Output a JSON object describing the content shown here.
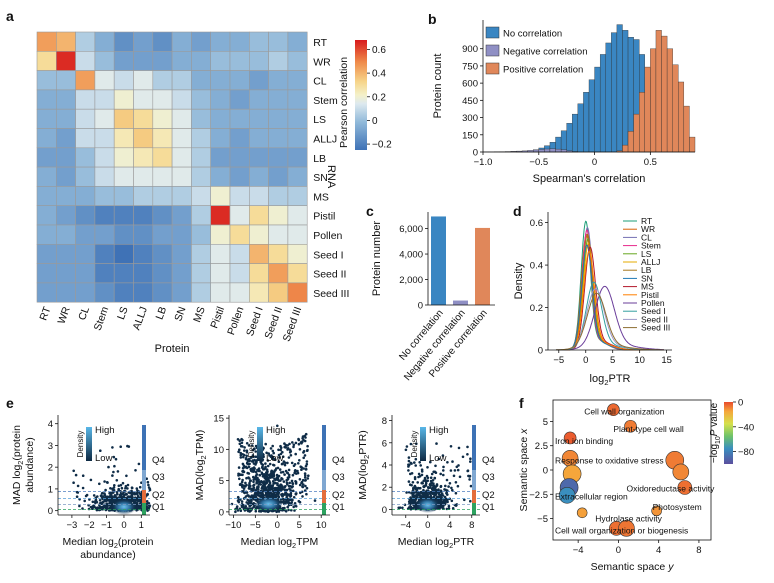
{
  "panel_letters": {
    "a": "a",
    "b": "b",
    "c": "c",
    "d": "d",
    "e": "e",
    "f": "f"
  },
  "colors": {
    "no_corr": "#3a86c2",
    "neg_corr": "#8f8fc4",
    "pos_corr": "#e0875a",
    "heat_low": "#3f72b6",
    "heat_mid": "#f4f1c9",
    "heat_high": "#d7191c"
  },
  "panel_a": {
    "chart_data": {
      "type": "heatmap",
      "rows": [
        "RT",
        "WR",
        "CL",
        "Stem",
        "LS",
        "ALLJ",
        "LB",
        "SN",
        "MS",
        "Pistil",
        "Pollen",
        "Seed I",
        "Seed II",
        "Seed III"
      ],
      "cols": [
        "RT",
        "WR",
        "CL",
        "Stem",
        "LS",
        "ALLJ",
        "LB",
        "SN",
        "MS",
        "Pistil",
        "Pollen",
        "Seed I",
        "Seed II",
        "Seed III"
      ],
      "values": [
        [
          0.45,
          0.4,
          0.05,
          -0.05,
          -0.15,
          -0.1,
          -0.15,
          -0.05,
          -0.1,
          -0.05,
          -0.05,
          0.0,
          0.0,
          -0.05
        ],
        [
          0.3,
          0.65,
          0.1,
          0.0,
          -0.1,
          -0.1,
          -0.1,
          -0.05,
          -0.05,
          0.0,
          0.0,
          0.0,
          0.05,
          0.0
        ],
        [
          0.0,
          0.0,
          0.45,
          0.15,
          0.1,
          0.15,
          0.05,
          0.05,
          -0.05,
          -0.05,
          -0.05,
          -0.1,
          -0.05,
          -0.05
        ],
        [
          -0.05,
          -0.05,
          0.1,
          0.1,
          0.2,
          0.15,
          0.15,
          0.1,
          0.0,
          -0.05,
          -0.1,
          -0.05,
          -0.05,
          -0.05
        ],
        [
          -0.05,
          -0.05,
          0.1,
          0.15,
          0.35,
          0.3,
          0.2,
          0.15,
          0.0,
          -0.05,
          -0.05,
          -0.05,
          -0.05,
          -0.05
        ],
        [
          -0.05,
          -0.1,
          0.1,
          0.1,
          0.25,
          0.35,
          0.25,
          0.15,
          0.05,
          -0.05,
          -0.1,
          -0.05,
          -0.05,
          -0.05
        ],
        [
          -0.1,
          -0.1,
          0.0,
          0.1,
          0.2,
          0.25,
          0.3,
          0.15,
          0.05,
          -0.1,
          -0.1,
          -0.1,
          -0.1,
          -0.1
        ],
        [
          -0.05,
          -0.1,
          0.0,
          0.1,
          0.15,
          0.15,
          0.15,
          0.15,
          0.05,
          -0.05,
          -0.1,
          -0.05,
          -0.1,
          -0.05
        ],
        [
          -0.05,
          -0.05,
          -0.05,
          0.0,
          0.0,
          0.05,
          0.05,
          0.05,
          0.1,
          0.2,
          0.1,
          0.1,
          0.05,
          0.05
        ],
        [
          -0.05,
          -0.1,
          -0.15,
          -0.2,
          -0.2,
          -0.2,
          -0.15,
          -0.1,
          0.05,
          0.65,
          0.15,
          0.3,
          0.2,
          0.15
        ],
        [
          -0.05,
          -0.05,
          -0.1,
          -0.1,
          -0.15,
          -0.15,
          -0.1,
          -0.1,
          0.0,
          0.2,
          0.3,
          0.2,
          0.15,
          0.15
        ],
        [
          -0.1,
          -0.1,
          -0.1,
          -0.2,
          -0.25,
          -0.2,
          -0.15,
          -0.1,
          0.05,
          0.15,
          0.1,
          0.4,
          0.3,
          0.2
        ],
        [
          -0.1,
          -0.1,
          -0.1,
          -0.2,
          -0.2,
          -0.2,
          -0.15,
          -0.1,
          0.05,
          0.15,
          0.1,
          0.3,
          0.45,
          0.3
        ],
        [
          -0.1,
          -0.1,
          -0.1,
          -0.15,
          -0.2,
          -0.2,
          -0.15,
          -0.1,
          0.05,
          0.15,
          0.15,
          0.25,
          0.35,
          0.5
        ]
      ],
      "xlabel": "Protein",
      "ylabel": "RNA",
      "colorbar": {
        "label": "Pearson correlation",
        "range": [
          -0.25,
          0.68
        ],
        "ticks": [
          0.6,
          0.4,
          0.2,
          0,
          -0.2
        ],
        "tick_labels": [
          "0.6",
          "0.4",
          "0.2",
          "0",
          "−0.2"
        ]
      }
    }
  },
  "panel_b": {
    "chart_data": {
      "type": "bar",
      "title": "",
      "xlabel": "Spearman's correlation",
      "ylabel": "Protein count",
      "xlim": [
        -1.0,
        0.9
      ],
      "ylim": [
        0,
        1150
      ],
      "xticks": [
        -1.0,
        -0.5,
        0,
        0.5
      ],
      "xtick_labels": [
        "−1.0",
        "−0.5",
        "0",
        "0.5"
      ],
      "yticks": [
        0,
        150,
        300,
        450,
        600,
        750,
        900
      ],
      "ytick_labels": [
        "0",
        "150",
        "300",
        "450",
        "600",
        "750",
        "900"
      ],
      "bin_width": 0.05,
      "series": [
        {
          "name": "No correlation",
          "color": "#3a86c2",
          "bin_start": -0.7,
          "values": [
            2,
            5,
            10,
            20,
            35,
            55,
            85,
            130,
            185,
            250,
            330,
            420,
            520,
            630,
            740,
            850,
            950,
            1040,
            1110,
            1060,
            1000,
            980,
            850,
            650
          ]
        },
        {
          "name": "Negative correlation",
          "color": "#8f8fc4",
          "bin_start": -1.0,
          "values": [
            1,
            1,
            2,
            3,
            4,
            6,
            8,
            10,
            14,
            18,
            22,
            26,
            28,
            25,
            20,
            10,
            4
          ]
        },
        {
          "name": "Positive correlation",
          "color": "#e0875a",
          "bin_start": 0.2,
          "values": [
            10,
            60,
            180,
            330,
            520,
            740,
            900,
            1060,
            1010,
            900,
            760,
            610,
            400,
            130
          ]
        }
      ],
      "legend": "top-left"
    }
  },
  "panel_c": {
    "chart_data": {
      "type": "bar",
      "categories": [
        "No correlation",
        "Negative correlation",
        "Positive correlation"
      ],
      "values": [
        6950,
        350,
        6050
      ],
      "colors": [
        "#3a86c2",
        "#8f8fc4",
        "#e0875a"
      ],
      "ylabel": "Protein number",
      "ylim": [
        0,
        7300
      ],
      "yticks": [
        0,
        2000,
        4000,
        6000
      ],
      "ytick_labels": [
        "0",
        "2,000",
        "4,000",
        "6,000"
      ]
    }
  },
  "panel_d": {
    "chart_data": {
      "type": "line",
      "xlabel_main": "log",
      "xlabel_sub": "2",
      "xlabel_tail": "PTR",
      "ylabel": "Density",
      "xlim": [
        -7,
        16
      ],
      "ylim": [
        0,
        0.65
      ],
      "xticks": [
        -5,
        0,
        5,
        10,
        15
      ],
      "xtick_labels": [
        "−5",
        "0",
        "5",
        "10",
        "15"
      ],
      "yticks": [
        0,
        0.2,
        0.4,
        0.6
      ],
      "ytick_labels": [
        "0",
        "0.2",
        "0.4",
        "0.6"
      ],
      "series": [
        {
          "name": "RT",
          "color": "#1b9e77",
          "mu": 0.0,
          "sd": 0.85,
          "peak": 0.58
        },
        {
          "name": "WR",
          "color": "#d95f02",
          "mu": 0.1,
          "sd": 0.9,
          "peak": 0.52
        },
        {
          "name": "CL",
          "color": "#7570b3",
          "mu": 0.3,
          "sd": 0.9,
          "peak": 0.55
        },
        {
          "name": "Stem",
          "color": "#e7298a",
          "mu": 0.2,
          "sd": 0.85,
          "peak": 0.54
        },
        {
          "name": "LS",
          "color": "#66a61e",
          "mu": 0.4,
          "sd": 0.9,
          "peak": 0.5
        },
        {
          "name": "ALLJ",
          "color": "#e6ab02",
          "mu": 0.5,
          "sd": 0.95,
          "peak": 0.48
        },
        {
          "name": "LB",
          "color": "#a6761d",
          "mu": 0.3,
          "sd": 0.9,
          "peak": 0.52
        },
        {
          "name": "SN",
          "color": "#1f78b4",
          "mu": 0.2,
          "sd": 0.95,
          "peak": 0.47
        },
        {
          "name": "MS",
          "color": "#b2182b",
          "mu": 0.8,
          "sd": 1.0,
          "peak": 0.46
        },
        {
          "name": "Pistil",
          "color": "#ff7f00",
          "mu": 0.6,
          "sd": 1.0,
          "peak": 0.44
        },
        {
          "name": "Pollen",
          "color": "#6a3d9a",
          "mu": 3.5,
          "sd": 1.8,
          "peak": 0.28
        },
        {
          "name": "Seed I",
          "color": "#33a0a0",
          "mu": 1.5,
          "sd": 1.4,
          "peak": 0.3
        },
        {
          "name": "Seed II",
          "color": "#9e9ac8",
          "mu": 1.8,
          "sd": 1.6,
          "peak": 0.27
        },
        {
          "name": "Seed III",
          "color": "#8c6d31",
          "mu": 2.0,
          "sd": 1.7,
          "peak": 0.25
        }
      ],
      "legend": "top-right"
    }
  },
  "panel_e": {
    "colorbar_high": "High",
    "colorbar_low": "Low",
    "colorbar_label": "Density",
    "quartiles": [
      "Q4",
      "Q3",
      "Q2",
      "Q1"
    ],
    "plots": [
      {
        "ylabel_line1": "MAD log",
        "ylabel_sub": "2",
        "ylabel_line1b": "(protein",
        "ylabel_line2": "abundance)",
        "xlabel_line1": "Median log",
        "xlabel_sub": "2",
        "xlabel_line1b": "(protein",
        "xlabel_line2": "abundance)",
        "xlim": [
          -3.8,
          1.5
        ],
        "ylim": [
          -0.2,
          4.4
        ],
        "xticks": [
          -3,
          -2,
          -1,
          0,
          1
        ],
        "xtick_labels": [
          "−3",
          "−2",
          "−1",
          "0",
          "1"
        ],
        "yticks": [
          0,
          1,
          2,
          3,
          4
        ],
        "ytick_labels": [
          "0",
          "1",
          "2",
          "3",
          "4"
        ]
      },
      {
        "ylabel_main": "MAD(log",
        "ylabel_sub": "2",
        "ylabel_tail": "TPM)",
        "xlabel_main": "Median log",
        "xlabel_sub": "2",
        "xlabel_tail": "TPM",
        "xlim": [
          -11,
          12
        ],
        "ylim": [
          -0.5,
          15.5
        ],
        "xticks": [
          -10,
          -5,
          0,
          5,
          10
        ],
        "xtick_labels": [
          "−10",
          "−5",
          "0",
          "5",
          "10"
        ],
        "yticks": [
          0,
          5,
          10,
          15
        ],
        "ytick_labels": [
          "0",
          "5",
          "10",
          "15"
        ]
      },
      {
        "ylabel_main": "MAD(log",
        "ylabel_sub": "2",
        "ylabel_tail": "PTR)",
        "xlabel_main": "Median log",
        "xlabel_sub": "2",
        "xlabel_tail": "PTR",
        "xlim": [
          -6.5,
          9.5
        ],
        "ylim": [
          -0.5,
          8.5
        ],
        "xticks": [
          -4,
          0,
          4,
          8
        ],
        "xtick_labels": [
          "−4",
          "0",
          "4",
          "8"
        ],
        "yticks": [
          0,
          2,
          4,
          6,
          8
        ],
        "ytick_labels": [
          "0",
          "2",
          "4",
          "6",
          "8"
        ]
      }
    ]
  },
  "panel_f": {
    "chart_data": {
      "type": "scatter",
      "xlabel": "Semantic space ",
      "xlabel_var": "y",
      "ylabel": "Semantic space ",
      "ylabel_var": "x",
      "xlim": [
        -6.5,
        9.2
      ],
      "ylim": [
        -7.2,
        7.2
      ],
      "xticks": [
        -4,
        0,
        4,
        8
      ],
      "xtick_labels": [
        "−4",
        "0",
        "4",
        "8"
      ],
      "yticks": [
        -5,
        -2.5,
        0,
        2.5,
        5
      ],
      "ytick_labels": [
        "−5",
        "−2.5",
        "0",
        "2.5",
        "5"
      ],
      "colorbar": {
        "label_pre": "log",
        "label_sub": "10",
        "label_var": "P",
        "label_post": " value",
        "range": [
          -100,
          0
        ],
        "ticks": [
          0,
          -40,
          -80
        ],
        "tick_labels": [
          "0",
          "−40",
          "−80"
        ]
      },
      "points": [
        {
          "x": -0.5,
          "y": 6.2,
          "logp": -5,
          "size": 6
        },
        {
          "x": 1.2,
          "y": 4.5,
          "logp": -8,
          "size": 6
        },
        {
          "x": -4.8,
          "y": 3.3,
          "logp": -3,
          "size": 6
        },
        {
          "x": -4.8,
          "y": 1.2,
          "logp": -10,
          "size": 8
        },
        {
          "x": -4.6,
          "y": -0.4,
          "logp": -15,
          "size": 9
        },
        {
          "x": -4.9,
          "y": -1.8,
          "logp": -90,
          "size": 9
        },
        {
          "x": -5.1,
          "y": -2.6,
          "logp": -75,
          "size": 8
        },
        {
          "x": 5.6,
          "y": 1.0,
          "logp": -8,
          "size": 9
        },
        {
          "x": 6.2,
          "y": -0.2,
          "logp": -10,
          "size": 8
        },
        {
          "x": 6.6,
          "y": -1.8,
          "logp": -6,
          "size": 7
        },
        {
          "x": 3.8,
          "y": -4.2,
          "logp": -12,
          "size": 5
        },
        {
          "x": -3.6,
          "y": -4.4,
          "logp": -14,
          "size": 5
        },
        {
          "x": -0.2,
          "y": -6.0,
          "logp": -6,
          "size": 7
        },
        {
          "x": 0.8,
          "y": -6.0,
          "logp": -7,
          "size": 8
        }
      ],
      "annotations": [
        {
          "text": "Cell wall organization",
          "x": -3.4,
          "y": 6.0
        },
        {
          "text": "Plant-type cell wall",
          "x": -0.5,
          "y": 4.2
        },
        {
          "text": "Iron ion binding",
          "x": -6.3,
          "y": 3.0
        },
        {
          "text": "Response to oxidative stress",
          "x": -6.3,
          "y": 1.0
        },
        {
          "text": "Oxidoreductase activity",
          "x": 0.8,
          "y": -1.9
        },
        {
          "text": "Extracellular region",
          "x": -6.3,
          "y": -2.7
        },
        {
          "text": "Photosystem",
          "x": 3.4,
          "y": -3.8
        },
        {
          "text": "Hydrolase activity",
          "x": -2.3,
          "y": -5.0
        },
        {
          "text": "Cell wall organization or biogenesis",
          "x": -6.3,
          "y": -6.2
        }
      ]
    }
  }
}
